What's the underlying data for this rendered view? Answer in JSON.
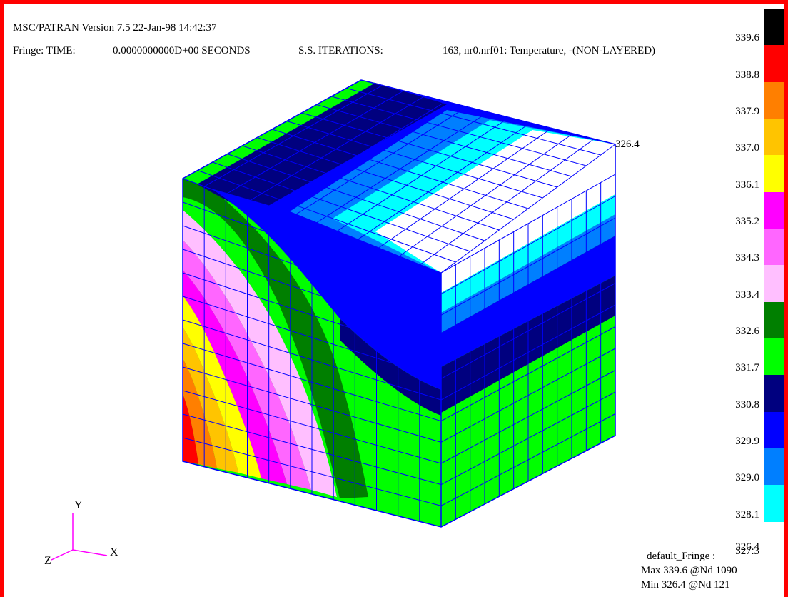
{
  "header": {
    "line1": "MSC/PATRAN Version 7.5 22-Jan-98 14:42:37",
    "line2_fringe": "Fringe: TIME:",
    "line2_time": "0.0000000000D+00 SECONDS",
    "line2_iter": "S.S. ITERATIONS:",
    "line2_result": "163, nr0.nrf01: Temperature, -(NON-LAYERED)"
  },
  "corner_value": "326.4",
  "legend": {
    "levels": [
      {
        "label": "339.6",
        "color": "#000000"
      },
      {
        "label": "338.8",
        "color": "#ff0000"
      },
      {
        "label": "337.9",
        "color": "#ff7f00"
      },
      {
        "label": "337.0",
        "color": "#ffc400"
      },
      {
        "label": "336.1",
        "color": "#ffff00"
      },
      {
        "label": "335.2",
        "color": "#ff00ff"
      },
      {
        "label": "334.3",
        "color": "#ff66ff"
      },
      {
        "label": "333.4",
        "color": "#ffbfff"
      },
      {
        "label": "332.6",
        "color": "#007f00"
      },
      {
        "label": "331.7",
        "color": "#00ff00"
      },
      {
        "label": "330.8",
        "color": "#00007f"
      },
      {
        "label": "329.9",
        "color": "#0000ff"
      },
      {
        "label": "329.0",
        "color": "#007fff"
      },
      {
        "label": "328.1",
        "color": "#00ffff"
      },
      {
        "label": "327.3",
        "color": "#ffffff"
      }
    ],
    "bottom_label": "326.4"
  },
  "info": {
    "fringe_name": "default_Fringe :",
    "max_line": "Max 339.6 @Nd 1090",
    "min_line": "Min 326.4 @Nd 121"
  },
  "axes": {
    "x": "X",
    "y": "Y",
    "z": "Z",
    "color": "#ff00ff"
  },
  "mesh_color": "#0000ff"
}
